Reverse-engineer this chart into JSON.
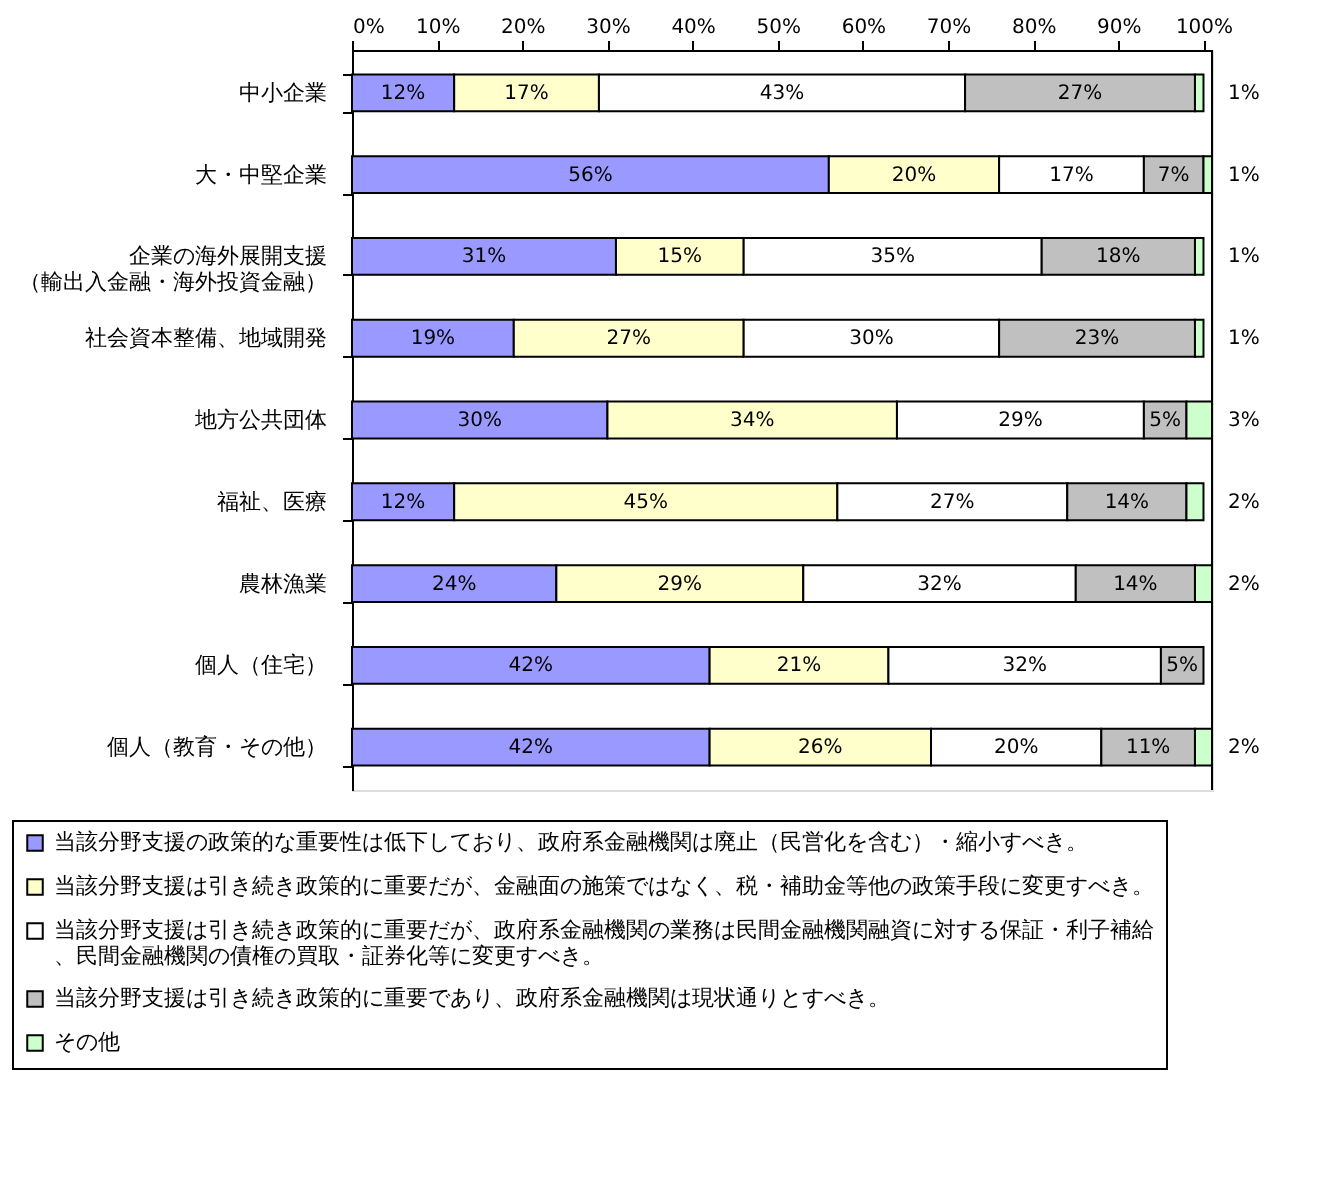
{
  "chart_data": {
    "type": "bar",
    "orientation": "horizontal",
    "stacked": true,
    "legend": "bottom",
    "grid": false,
    "categories": [
      "中小企業",
      "大・中堅企業",
      "企業の海外展開支援（輸出入金融・海外投資金融）",
      "社会資本整備、地域開発",
      "地方公共団体",
      "福祉、医療",
      "農林漁業",
      "個人（住宅）",
      "個人（教育・その他）"
    ],
    "xlim": [
      0,
      101
    ],
    "xticks": [
      {
        "value": 0,
        "label": "0%"
      },
      {
        "value": 10,
        "label": "10%"
      },
      {
        "value": 20,
        "label": "20%"
      },
      {
        "value": 30,
        "label": "30%"
      },
      {
        "value": 40,
        "label": "40%"
      },
      {
        "value": 50,
        "label": "50%"
      },
      {
        "value": 60,
        "label": "60%"
      },
      {
        "value": 70,
        "label": "70%"
      },
      {
        "value": 80,
        "label": "80%"
      },
      {
        "value": 90,
        "label": "90%"
      },
      {
        "value": 100,
        "label": "100%"
      }
    ],
    "series": [
      {
        "name": "当該分野支援の政策的な重要性は低下しており、政府系金融機関は廃止（民営化を含む）・縮小すべき。",
        "color": "#9999ff",
        "values": [
          12,
          56,
          31,
          19,
          30,
          12,
          24,
          42,
          42
        ],
        "value_labels": [
          "12%",
          "56%",
          "31%",
          "19%",
          "30%",
          "12%",
          "24%",
          "42%",
          "42%"
        ]
      },
      {
        "name": "当該分野支援は引き続き政策的に重要だが、金融面の施策ではなく、税・補助金等他の政策手段に変更すべき。",
        "color": "#ffffcc",
        "values": [
          17,
          20,
          15,
          27,
          34,
          45,
          29,
          21,
          26
        ],
        "value_labels": [
          "17%",
          "20%",
          "15%",
          "27%",
          "34%",
          "45%",
          "29%",
          "21%",
          "26%"
        ]
      },
      {
        "name": "当該分野支援は引き続き政策的に重要だが、政府系金融機関の業務は民間金融機関融資に対する保証・利子補給、民間金融機関の債権の買取・証券化等に変更すべき。",
        "color": "#ffffff",
        "values": [
          43,
          17,
          35,
          30,
          29,
          27,
          32,
          32,
          20
        ],
        "value_labels": [
          "43%",
          "17%",
          "35%",
          "30%",
          "29%",
          "27%",
          "32%",
          "32%",
          "20%"
        ]
      },
      {
        "name": "当該分野支援は引き続き政策的に重要であり、政府系金融機関は現状通りとすべき。",
        "color": "#c0c0c0",
        "values": [
          27,
          7,
          18,
          23,
          5,
          14,
          14,
          5,
          11
        ],
        "value_labels": [
          "27%",
          "7%",
          "18%",
          "23%",
          "5%",
          "14%",
          "14%",
          "5%",
          "11%"
        ]
      },
      {
        "name": "その他",
        "color": "#ccffcc",
        "values": [
          1,
          1,
          1,
          1,
          3,
          2,
          2,
          null,
          2
        ],
        "value_labels": [
          "1%",
          "1%",
          "1%",
          "1%",
          "3%",
          "2%",
          "2%",
          null,
          "2%"
        ]
      }
    ]
  }
}
